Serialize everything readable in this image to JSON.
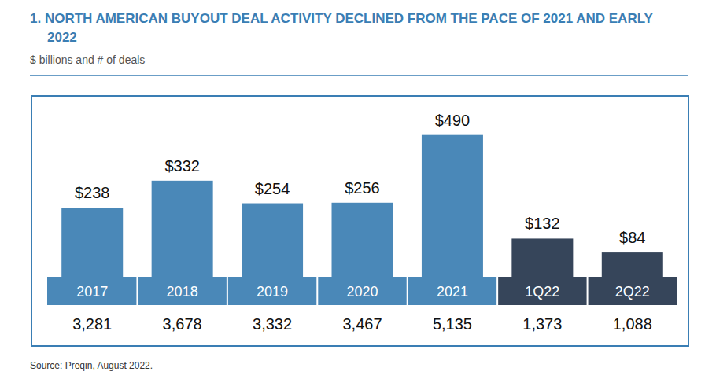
{
  "chart_data": {
    "type": "bar",
    "title": "1. NORTH AMERICAN BUYOUT DEAL ACTIVITY DECLINED FROM THE PACE OF 2021 AND EARLY 2022",
    "subtitle": "$ billions and # of deals",
    "categories": [
      "2017",
      "2018",
      "2019",
      "2020",
      "2021",
      "1Q22",
      "2Q22"
    ],
    "values": [
      238,
      332,
      254,
      256,
      490,
      132,
      84
    ],
    "value_labels": [
      "$238",
      "$332",
      "$254",
      "$256",
      "$490",
      "$132",
      "$84"
    ],
    "deal_counts": [
      "3,281",
      "3,678",
      "3,332",
      "3,467",
      "5,135",
      "1,373",
      "1,088"
    ],
    "colors": [
      "#4a88b8",
      "#4a88b8",
      "#4a88b8",
      "#4a88b8",
      "#4a88b8",
      "#36455a",
      "#36455a"
    ],
    "ylim": [
      0,
      500
    ],
    "data_labels": true,
    "tick_labels": "x",
    "source": "Source: Preqin, August 2022."
  }
}
